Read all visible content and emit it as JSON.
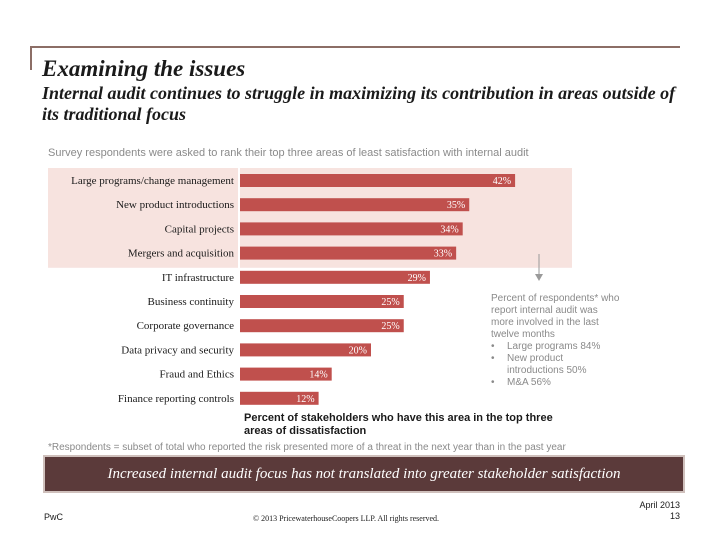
{
  "header": {
    "title": "Examining the issues",
    "subtitle": "Internal audit continues to struggle in maximizing its contribution in areas outside of its traditional focus"
  },
  "survey_note": "Survey respondents were asked to rank their top three areas of least satisfaction with internal audit",
  "callout": {
    "heading": "Percent of respondents* who report internal audit was more involved in the last twelve months",
    "items": [
      "Large programs 84%",
      "New product introductions 50%",
      "M&A 56%"
    ]
  },
  "footnote": "*Respondents = subset of total who reported the risk presented more of a threat in the next year than in the past year",
  "banner": "Increased internal audit focus has not translated into greater stakeholder satisfaction",
  "footer": {
    "brand": "PwC",
    "copyright": "© 2013 PricewaterhouseCoopers LLP. All rights reserved.",
    "date": "April 2013",
    "page": "13"
  },
  "colors": {
    "bar": "#c0504d",
    "highlight": "#f7e3df",
    "banner": "#5b3a3a"
  },
  "chart_data": {
    "type": "bar",
    "orientation": "horizontal",
    "title": "Survey respondents were asked to rank their top three areas of least satisfaction with internal audit",
    "xlabel": "Percent of stakeholders who have this area in the top three areas of dissatisfaction",
    "ylabel": "",
    "xlim": [
      0,
      50
    ],
    "categories": [
      "Large programs/change management",
      "New product introductions",
      "Capital projects",
      "Mergers and acquisition",
      "IT infrastructure",
      "Business continuity",
      "Corporate governance",
      "Data privacy and security",
      "Fraud and Ethics",
      "Finance reporting controls"
    ],
    "values": [
      42,
      35,
      34,
      33,
      29,
      25,
      25,
      20,
      14,
      12
    ],
    "value_labels": [
      "42%",
      "35%",
      "34%",
      "33%",
      "29%",
      "25%",
      "25%",
      "20%",
      "14%",
      "12%"
    ],
    "highlighted_count": 4
  }
}
